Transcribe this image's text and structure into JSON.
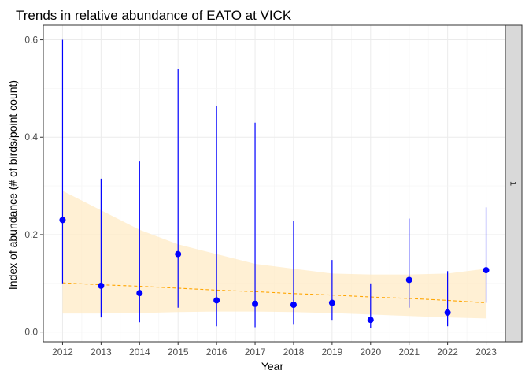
{
  "chart_data": {
    "type": "scatter",
    "title": "Trends in relative abundance of EATO at VICK",
    "xlabel": "Year",
    "ylabel": "Index of abundance (# of birds/point count)",
    "facet_label": "1",
    "x": [
      2012,
      2013,
      2014,
      2015,
      2016,
      2017,
      2018,
      2019,
      2020,
      2021,
      2022,
      2023
    ],
    "xlim": [
      2011.5,
      2023.5
    ],
    "ylim": [
      -0.02,
      0.63
    ],
    "y_ticks": [
      0.0,
      0.2,
      0.4,
      0.6
    ],
    "y_tick_labels": [
      "0.0",
      "0.2",
      "0.4",
      "0.6"
    ],
    "grid": true,
    "series": [
      {
        "values": [
          0.23,
          0.095,
          0.08,
          0.16,
          0.065,
          0.058,
          0.056,
          0.06,
          0.025,
          0.107,
          0.04,
          0.127
        ],
        "lower": [
          0.1,
          0.03,
          0.02,
          0.05,
          0.012,
          0.01,
          0.015,
          0.025,
          0.008,
          0.05,
          0.012,
          0.06
        ],
        "upper": [
          0.6,
          0.315,
          0.35,
          0.54,
          0.465,
          0.43,
          0.228,
          0.148,
          0.1,
          0.233,
          0.125,
          0.256
        ]
      }
    ],
    "trend": {
      "values": [
        0.101,
        0.097,
        0.094,
        0.09,
        0.086,
        0.083,
        0.079,
        0.076,
        0.072,
        0.069,
        0.065,
        0.06
      ],
      "lower": [
        0.038,
        0.038,
        0.039,
        0.041,
        0.042,
        0.042,
        0.041,
        0.039,
        0.036,
        0.033,
        0.03,
        0.028
      ],
      "upper": [
        0.29,
        0.25,
        0.21,
        0.18,
        0.16,
        0.14,
        0.13,
        0.12,
        0.118,
        0.118,
        0.12,
        0.13
      ]
    },
    "colors": {
      "points": "#0000ff",
      "trend_line": "#ffa500",
      "trend_ribbon": "#ffe9c2",
      "grid": "#ebebeb",
      "panel_border": "#333333",
      "strip": "#d9d9d9"
    }
  }
}
